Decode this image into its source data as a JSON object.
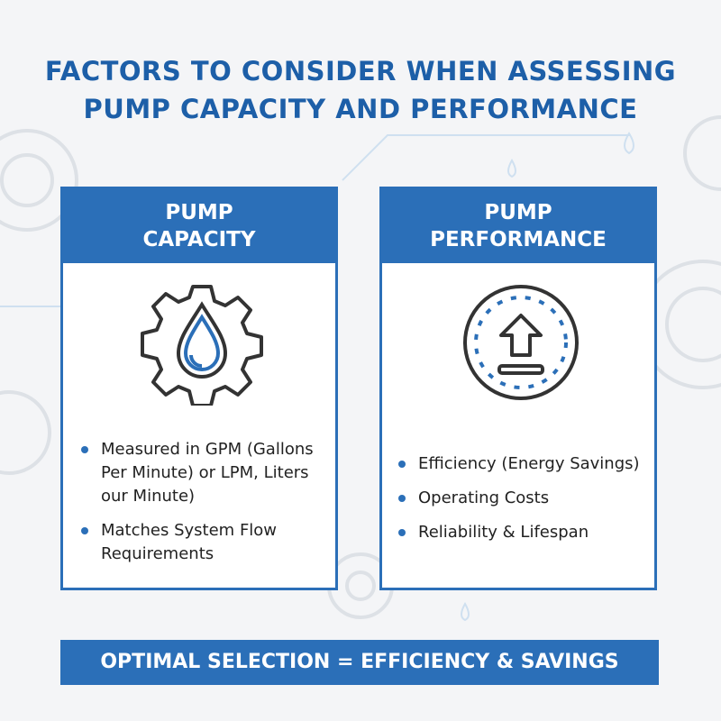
{
  "title_lines": [
    "FACTORS TO CONSIDER WHEN ASSESSING",
    "PUMP CAPACITY AND PERFORMANCE"
  ],
  "cards": [
    {
      "heading": [
        "PUMP",
        "CAPACITY"
      ],
      "items": [
        "Measured in GPM (Gallons Per Minute) or LPM, Liters our Minute)",
        "Matches System Flow Requirements"
      ]
    },
    {
      "heading": [
        "PUMP",
        "PERFORMANCE"
      ],
      "items": [
        "Efficiency (Energy Savings)",
        "Operating Costs",
        "Reliability & Lifespan"
      ]
    }
  ],
  "footer": "OPTIMAL SELECTION = EFFICIENCY & SAVINGS"
}
